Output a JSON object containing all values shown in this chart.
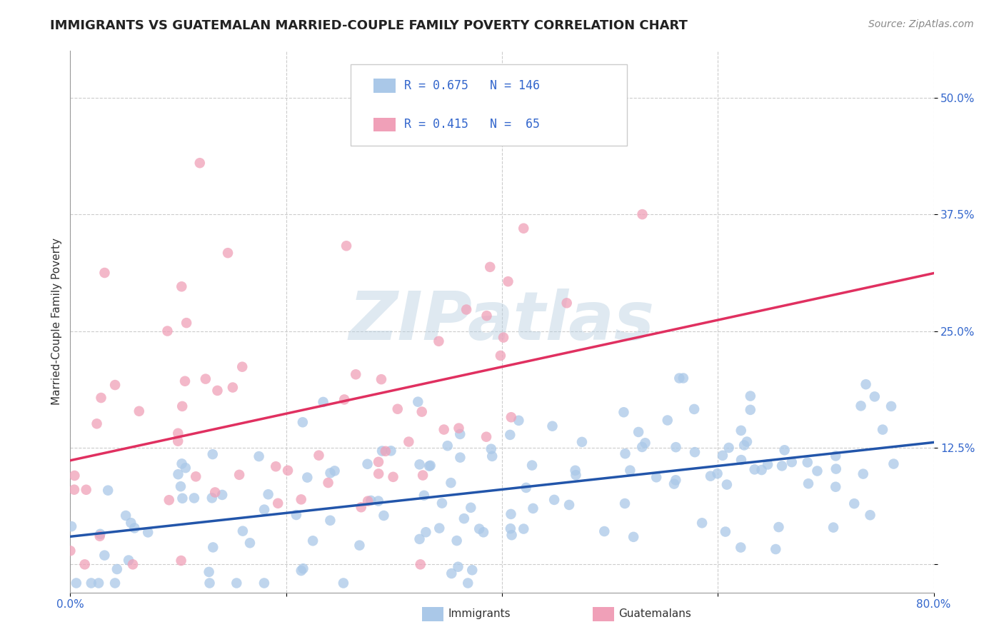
{
  "title": "IMMIGRANTS VS GUATEMALAN MARRIED-COUPLE FAMILY POVERTY CORRELATION CHART",
  "source": "Source: ZipAtlas.com",
  "ylabel": "Married-Couple Family Poverty",
  "xlim": [
    0.0,
    0.8
  ],
  "ylim": [
    -0.03,
    0.55
  ],
  "xticks": [
    0.0,
    0.2,
    0.4,
    0.6,
    0.8
  ],
  "xtick_labels": [
    "0.0%",
    "",
    "",
    "",
    "80.0%"
  ],
  "yticks": [
    0.0,
    0.125,
    0.25,
    0.375,
    0.5
  ],
  "ytick_labels": [
    "",
    "12.5%",
    "25.0%",
    "37.5%",
    "50.0%"
  ],
  "grid_color": "#cccccc",
  "background_color": "#ffffff",
  "watermark": "ZIPatlas",
  "immigrants_color": "#aac8e8",
  "guatemalans_color": "#f0a0b8",
  "immigrants_line_color": "#2255aa",
  "guatemalans_line_color": "#e03060",
  "immigrants_R": 0.675,
  "immigrants_N": 146,
  "guatemalans_R": 0.415,
  "guatemalans_N": 65,
  "title_fontsize": 13,
  "axis_label_fontsize": 11,
  "tick_fontsize": 11,
  "source_fontsize": 10
}
